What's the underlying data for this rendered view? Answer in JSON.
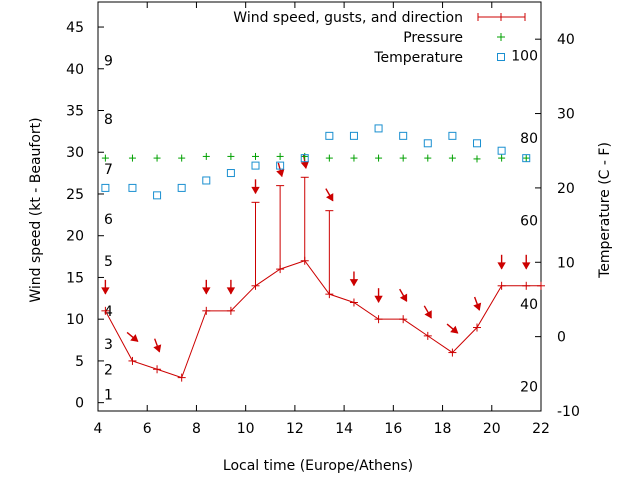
{
  "chart_data": {
    "type": "line",
    "xlabel": "Local time (Europe/Athens)",
    "ylabel": "Wind speed (kt - Beaufort)",
    "y2label": "Temperature (C - F)",
    "xlim": [
      4,
      22
    ],
    "ylim": [
      -1,
      48
    ],
    "y2lim": [
      -10,
      45
    ],
    "x_ticks": [
      4,
      6,
      8,
      10,
      12,
      14,
      16,
      18,
      20,
      22
    ],
    "y_ticks": [
      0,
      5,
      10,
      15,
      20,
      25,
      30,
      35,
      40,
      45
    ],
    "y2_ticks": [
      -10,
      0,
      10,
      20,
      30,
      40
    ],
    "beaufort_labels": [
      {
        "label": "1",
        "kt": 1
      },
      {
        "label": "2",
        "kt": 4
      },
      {
        "label": "3",
        "kt": 7
      },
      {
        "label": "4",
        "kt": 11
      },
      {
        "label": "5",
        "kt": 17
      },
      {
        "label": "6",
        "kt": 22
      },
      {
        "label": "7",
        "kt": 28
      },
      {
        "label": "8",
        "kt": 34
      },
      {
        "label": "9",
        "kt": 41
      }
    ],
    "fahrenheit_labels": [
      {
        "label": "20",
        "c": -6.7
      },
      {
        "label": "40",
        "c": 4.4
      },
      {
        "label": "60",
        "c": 15.6
      },
      {
        "label": "80",
        "c": 26.7
      },
      {
        "label": "100",
        "c": 37.8
      }
    ],
    "legend_position": "top-right",
    "series": [
      {
        "name": "Wind speed, gusts, and direction",
        "color": "#cc0000",
        "x": [
          4.3,
          5.4,
          6.4,
          7.4,
          8.4,
          9.4,
          10.4,
          11.4,
          12.4,
          13.4,
          14.4,
          15.4,
          16.4,
          17.4,
          18.4,
          19.4,
          20.4,
          21.4,
          22
        ],
        "y": [
          11,
          5,
          4,
          3,
          11,
          11,
          14,
          16,
          17,
          13,
          12,
          10,
          10,
          8,
          6,
          9,
          14,
          14,
          14
        ],
        "gusts": [
          null,
          null,
          null,
          null,
          null,
          null,
          24,
          26,
          27,
          23,
          null,
          null,
          null,
          null,
          null,
          null,
          null,
          null,
          null
        ],
        "direction_deg": [
          0,
          310,
          340,
          null,
          0,
          0,
          0,
          345,
          350,
          330,
          0,
          0,
          330,
          330,
          310,
          340,
          0,
          0,
          null
        ]
      },
      {
        "name": "Pressure",
        "color": "#00a000",
        "x": [
          4.3,
          5.4,
          6.4,
          7.4,
          8.4,
          9.4,
          10.4,
          11.4,
          12.4,
          13.4,
          14.4,
          15.4,
          16.4,
          17.4,
          18.4,
          19.4,
          20.4,
          21.4
        ],
        "y": [
          29.3,
          29.3,
          29.3,
          29.3,
          29.5,
          29.5,
          29.5,
          29.5,
          29.5,
          29.3,
          29.3,
          29.3,
          29.3,
          29.3,
          29.3,
          29.2,
          29.3,
          29.3
        ]
      },
      {
        "name": "Temperature",
        "color": "#1a8fd0",
        "axis": "y2",
        "x": [
          4.3,
          5.4,
          6.4,
          7.4,
          8.4,
          9.4,
          10.4,
          11.4,
          12.4,
          13.4,
          14.4,
          15.4,
          16.4,
          17.4,
          18.4,
          19.4,
          20.4,
          21.4
        ],
        "y": [
          20,
          20,
          19,
          20,
          21,
          22,
          23,
          23,
          24,
          27,
          27,
          28,
          27,
          26,
          27,
          26,
          25,
          24
        ]
      }
    ]
  }
}
